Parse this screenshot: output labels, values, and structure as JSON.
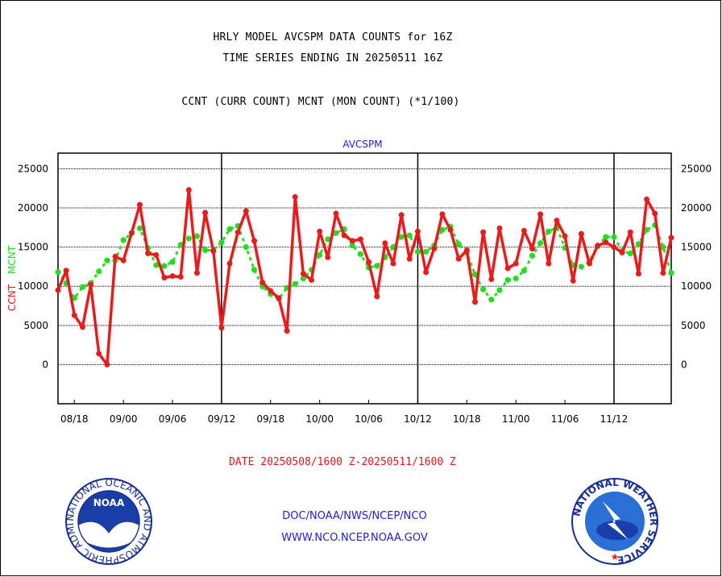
{
  "header": {
    "title_line1": "HRLY MODEL AVCSPM DATA COUNTS for 16Z",
    "title_line2": "TIME SERIES ENDING IN 20250511 16Z",
    "subtitle": "CCNT (CURR COUNT) MCNT (MON COUNT) (*1/100)"
  },
  "footer": {
    "date_range": "DATE 20250508/1600 Z-20250511/1600 Z",
    "credit_line1": "DOC/NOAA/NWS/NCEP/NCO",
    "credit_line2": "WWW.NCO.NCEP.NOAA.GOV"
  },
  "logos": {
    "noaa_text": "NOAA",
    "noaa_ring": "NATIONAL OCEANIC AND ATMOSPHERIC ADMINISTRATION U.S. DEPARTMENT OF COMMERCE",
    "nws_ring": "NATIONAL WEATHER SERVICE"
  },
  "colors": {
    "ccnt": "#e81c1c",
    "mcnt": "#22dd22",
    "axis": "#000000",
    "text_blue": "#1e1ecf"
  },
  "chart_data": {
    "type": "line",
    "title": "AVCSPM",
    "ylabel_left": [
      "CCNT",
      "MCNT"
    ],
    "ylim": [
      -5000,
      27000
    ],
    "y_ticks": [
      0,
      5000,
      10000,
      15000,
      20000,
      25000
    ],
    "x_tick_labels": [
      "08/18",
      "09/00",
      "09/06",
      "09/12",
      "09/18",
      "10/00",
      "10/06",
      "10/12",
      "10/18",
      "11/00",
      "11/06",
      "11/12"
    ],
    "day_separators": [
      "09/12",
      "10/12",
      "11/12"
    ],
    "grid": "horizontal",
    "series": [
      {
        "name": "CCNT",
        "values": [
          9500,
          12000,
          6300,
          4800,
          10200,
          1400,
          0,
          13800,
          13300,
          16800,
          20400,
          14200,
          14000,
          11100,
          11300,
          11200,
          22300,
          11700,
          19400,
          14500,
          4700,
          12900,
          16900,
          19600,
          15800,
          10500,
          9400,
          8500,
          4300,
          21400,
          11600,
          10800,
          17000,
          13700,
          19300,
          16500,
          15800,
          16000,
          13100,
          8700,
          15500,
          12900,
          19100,
          13500,
          17000,
          11800,
          14800,
          19200,
          17200,
          13500,
          14600,
          8000,
          16900,
          10900,
          17400,
          12300,
          12900,
          17100,
          14800,
          19200,
          12900,
          18400,
          16400,
          10700,
          16700,
          12900,
          15200,
          15600,
          15000,
          14300,
          16900,
          11600,
          21100,
          19300,
          11700,
          16200
        ]
      },
      {
        "name": "MCNT",
        "values": [
          11800,
          10400,
          8500,
          9900,
          10400,
          11900,
          13300,
          13300,
          15900,
          16800,
          17400,
          14900,
          12700,
          12600,
          13100,
          15300,
          16100,
          16400,
          14600,
          14600,
          15600,
          17300,
          17700,
          15000,
          12100,
          10000,
          9000,
          8400,
          9800,
          10300,
          11000,
          12100,
          14000,
          16000,
          16800,
          17300,
          15200,
          14100,
          12400,
          12600,
          13700,
          15000,
          16300,
          16500,
          14400,
          14400,
          15200,
          17200,
          17600,
          15400,
          14300,
          11500,
          9600,
          8300,
          9500,
          10800,
          11000,
          12000,
          13900,
          15500,
          17000,
          17500,
          14900,
          12700,
          12500,
          13200,
          15100,
          16300,
          16300,
          14500,
          14200,
          15400,
          17200,
          17800,
          15000,
          11700
        ]
      }
    ]
  }
}
